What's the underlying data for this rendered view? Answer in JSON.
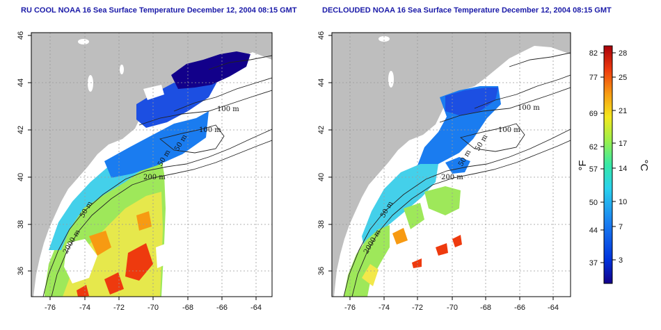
{
  "titles": {
    "left": "RU COOL NOAA 16 Sea Surface Temperature December 12, 2004 08:15 GMT",
    "right": "DECLOUDED NOAA 16 Sea Surface Temperature December 12, 2004 08:15 GMT"
  },
  "axes": {
    "x_ticks": [
      "-76",
      "-74",
      "-72",
      "-70",
      "-68",
      "-66",
      "-64"
    ],
    "y_ticks": [
      "36",
      "38",
      "40",
      "42",
      "44",
      "46"
    ]
  },
  "contour_labels": {
    "left": [
      "100 m",
      "100 m",
      "50 m",
      "200 m",
      "50 m",
      "50 m",
      "2000 m"
    ],
    "right": [
      "100 m",
      "100 m",
      "50 m",
      "200 m",
      "50 m",
      "50 m",
      "2000 m"
    ]
  },
  "colorbar": {
    "f_ticks": [
      "82",
      "77",
      "69",
      "62",
      "57",
      "50",
      "44",
      "37"
    ],
    "c_ticks": [
      "28",
      "25",
      "21",
      "17",
      "14",
      "10",
      "7",
      "3"
    ],
    "f_unit": "°F",
    "c_unit": "°C",
    "colors": [
      "#12008a",
      "#0033dd",
      "#1a7cf0",
      "#2ad2ee",
      "#36e8a6",
      "#9af04c",
      "#f4e81e",
      "#f79a12",
      "#ee3a0e",
      "#a8000a"
    ]
  },
  "colors": {
    "land": "#bebebe",
    "title": "#1a1aa8",
    "grid": "#999999"
  }
}
